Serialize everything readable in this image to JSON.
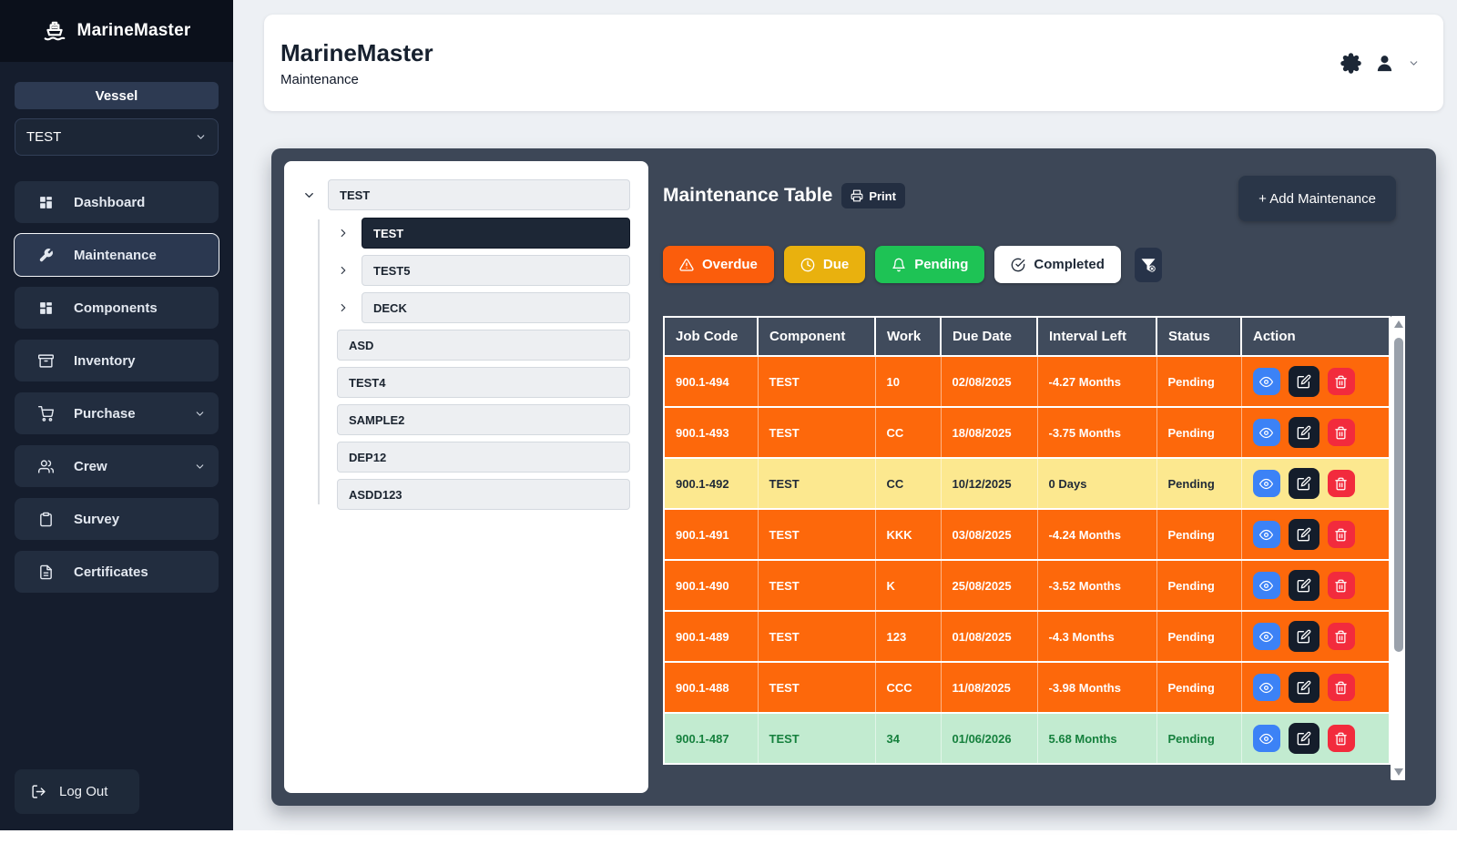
{
  "colors": {
    "sidebar_bg": "#151d2d",
    "sidebar_top_bg": "#0b101b",
    "nav_item_bg": "#222d3f",
    "nav_active_bg": "#2b3850",
    "page_bg": "#edf0f4",
    "panel_bg": "#3d4757",
    "header_cell_bg": "#404b5c",
    "row_overdue": "#fd680b",
    "row_due": "#fce88f",
    "row_upcoming": "#c2ebd0",
    "row_due_text": "#1f2937",
    "row_upcoming_text": "#15803d",
    "view_btn": "#3c82f6",
    "edit_btn": "#141d2b",
    "delete_btn": "#f22b3d",
    "dark_btn": "#273349"
  },
  "sidebar": {
    "brand": "MarineMaster",
    "brand_icon": "ship-icon",
    "vessel_label": "Vessel",
    "vessel_selected": "TEST",
    "items": [
      {
        "label": "Dashboard",
        "icon": "grid-icon",
        "active": false,
        "chevron": false
      },
      {
        "label": "Maintenance",
        "icon": "wrench-icon",
        "active": true,
        "chevron": false
      },
      {
        "label": "Components",
        "icon": "grid-icon",
        "active": false,
        "chevron": false
      },
      {
        "label": "Inventory",
        "icon": "archive-icon",
        "active": false,
        "chevron": false
      },
      {
        "label": "Purchase",
        "icon": "cart-icon",
        "active": false,
        "chevron": true
      },
      {
        "label": "Crew",
        "icon": "users-icon",
        "active": false,
        "chevron": true
      },
      {
        "label": "Survey",
        "icon": "clipboard-icon",
        "active": false,
        "chevron": false
      },
      {
        "label": "Certificates",
        "icon": "file-icon",
        "active": false,
        "chevron": false
      }
    ],
    "logout_label": "Log Out",
    "logout_icon": "logout-icon"
  },
  "header": {
    "title": "MarineMaster",
    "subtitle": "Maintenance",
    "icons": [
      "gear-icon",
      "user-icon",
      "chevron-down-icon"
    ]
  },
  "tree": {
    "root": {
      "label": "TEST",
      "expanded": true
    },
    "nodes": [
      {
        "label": "TEST",
        "type": "branch",
        "selected": true
      },
      {
        "label": "TEST5",
        "type": "branch",
        "selected": false
      },
      {
        "label": "DECK",
        "type": "branch",
        "selected": false
      },
      {
        "label": "ASD",
        "type": "leaf",
        "selected": false
      },
      {
        "label": "TEST4",
        "type": "leaf",
        "selected": false
      },
      {
        "label": "SAMPLE2",
        "type": "leaf",
        "selected": false
      },
      {
        "label": "DEP12",
        "type": "leaf",
        "selected": false
      },
      {
        "label": "ASDD123",
        "type": "leaf",
        "selected": false
      }
    ]
  },
  "main": {
    "table_title": "Maintenance Table",
    "print_label": "Print",
    "print_icon": "printer-icon",
    "add_button_label": "+ Add Maintenance",
    "filters": [
      {
        "label": "Overdue",
        "icon": "warning-icon",
        "color": "#fb5d0c",
        "text": "#ffffff"
      },
      {
        "label": "Due",
        "icon": "clock-icon",
        "color": "#e9b10e",
        "text": "#ffffff"
      },
      {
        "label": "Pending",
        "icon": "bell-icon",
        "color": "#1ec355",
        "text": "#ffffff"
      },
      {
        "label": "Completed",
        "icon": "check-circle-icon",
        "color": "#ffffff",
        "text": "#1f2937"
      }
    ],
    "clear_filter_icon": "filter-x-icon",
    "table": {
      "columns": [
        "Job Code",
        "Component",
        "Work",
        "Due Date",
        "Interval Left",
        "Status",
        "Action"
      ],
      "actions": [
        {
          "name": "view",
          "icon": "eye-icon"
        },
        {
          "name": "edit",
          "icon": "edit-icon"
        },
        {
          "name": "delete",
          "icon": "trash-icon"
        }
      ],
      "rows": [
        {
          "job_code": "900.1-494",
          "component": "TEST",
          "work": "10",
          "due_date": "02/08/2025",
          "interval_left": "-4.27 Months",
          "status": "Pending",
          "state": "overdue"
        },
        {
          "job_code": "900.1-493",
          "component": "TEST",
          "work": "CC",
          "due_date": "18/08/2025",
          "interval_left": "-3.75 Months",
          "status": "Pending",
          "state": "overdue"
        },
        {
          "job_code": "900.1-492",
          "component": "TEST",
          "work": "CC",
          "due_date": "10/12/2025",
          "interval_left": "0 Days",
          "status": "Pending",
          "state": "due"
        },
        {
          "job_code": "900.1-491",
          "component": "TEST",
          "work": "KKK",
          "due_date": "03/08/2025",
          "interval_left": "-4.24 Months",
          "status": "Pending",
          "state": "overdue"
        },
        {
          "job_code": "900.1-490",
          "component": "TEST",
          "work": "K",
          "due_date": "25/08/2025",
          "interval_left": "-3.52 Months",
          "status": "Pending",
          "state": "overdue"
        },
        {
          "job_code": "900.1-489",
          "component": "TEST",
          "work": "123",
          "due_date": "01/08/2025",
          "interval_left": "-4.3 Months",
          "status": "Pending",
          "state": "overdue"
        },
        {
          "job_code": "900.1-488",
          "component": "TEST",
          "work": "CCC",
          "due_date": "11/08/2025",
          "interval_left": "-3.98 Months",
          "status": "Pending",
          "state": "overdue"
        },
        {
          "job_code": "900.1-487",
          "component": "TEST",
          "work": "34",
          "due_date": "01/06/2026",
          "interval_left": "5.68 Months",
          "status": "Pending",
          "state": "upcoming"
        }
      ]
    }
  }
}
